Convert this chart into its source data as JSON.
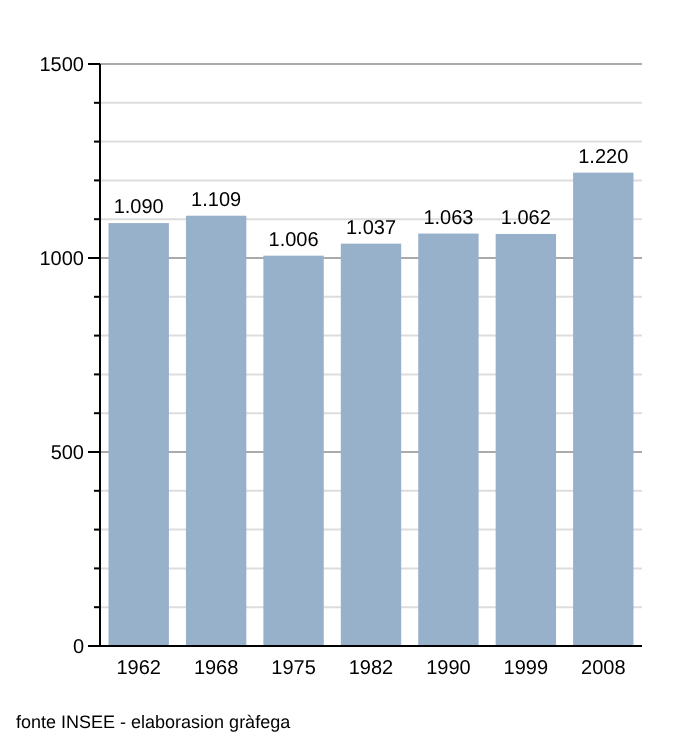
{
  "chart_data": {
    "type": "bar",
    "categories": [
      "1962",
      "1968",
      "1975",
      "1982",
      "1990",
      "1999",
      "2008"
    ],
    "values": [
      1090,
      1109,
      1006,
      1037,
      1063,
      1062,
      1220
    ],
    "value_labels": [
      "1.090",
      "1.109",
      "1.006",
      "1.037",
      "1.063",
      "1.062",
      "1.220"
    ],
    "color": "#98b1cb",
    "ylim": [
      0,
      1500
    ],
    "yticks": [
      0,
      {
        "value": 100,
        "label": null
      },
      {
        "value": 200,
        "label": null
      },
      {
        "value": 300,
        "label": null
      },
      {
        "value": 400,
        "label": null
      },
      500,
      {
        "value": 600,
        "label": null
      },
      {
        "value": 700,
        "label": null
      },
      {
        "value": 800,
        "label": null
      },
      {
        "value": 900,
        "label": null
      },
      1000,
      {
        "value": 1100,
        "label": null
      },
      {
        "value": 1200,
        "label": null
      },
      {
        "value": 1300,
        "label": null
      },
      {
        "value": 1400,
        "label": null
      },
      1500
    ],
    "grid": true,
    "annotations": [
      "fonte INSEE - elaborasion gràfega"
    ]
  }
}
